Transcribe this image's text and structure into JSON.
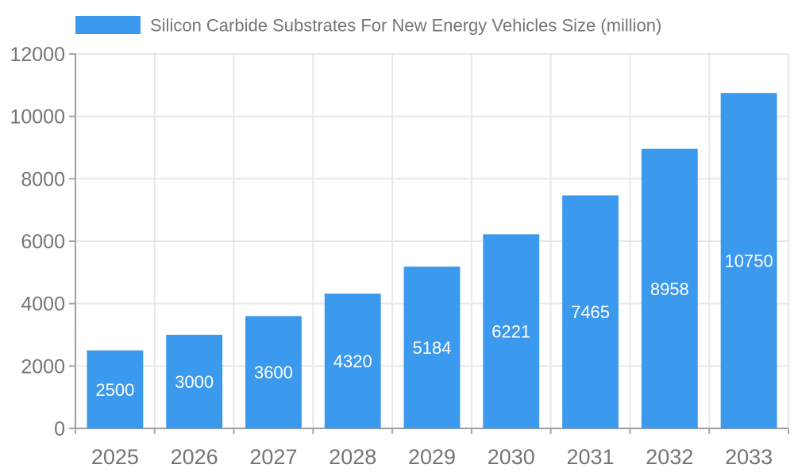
{
  "chart_data": {
    "type": "bar",
    "title": "Silicon Carbide Substrates For New Energy Vehicles Size (million)",
    "legend": [
      "Silicon Carbide Substrates For New Energy Vehicles Size (million)"
    ],
    "legend_position": "top",
    "categories": [
      "2025",
      "2026",
      "2027",
      "2028",
      "2029",
      "2030",
      "2031",
      "2032",
      "2033"
    ],
    "series": [
      {
        "name": "Silicon Carbide Substrates For New Energy Vehicles Size (million)",
        "values": [
          2500,
          3000,
          3600,
          4320,
          5184,
          6221,
          7465,
          8958,
          10750
        ]
      }
    ],
    "xlabel": "",
    "ylabel": "",
    "ylim": [
      0,
      12000
    ],
    "yticks": [
      0,
      2000,
      4000,
      6000,
      8000,
      10000,
      12000
    ],
    "grid": true,
    "value_labels": {
      "visible": true,
      "position": "inside-center",
      "color": "#ffffff"
    },
    "colors": {
      "bar": "#3B99EE",
      "axis": "#9e9e9e",
      "grid": "#e8e8e8",
      "tick": "#a6a6a6",
      "text": "#757575",
      "background": "#ffffff"
    }
  }
}
